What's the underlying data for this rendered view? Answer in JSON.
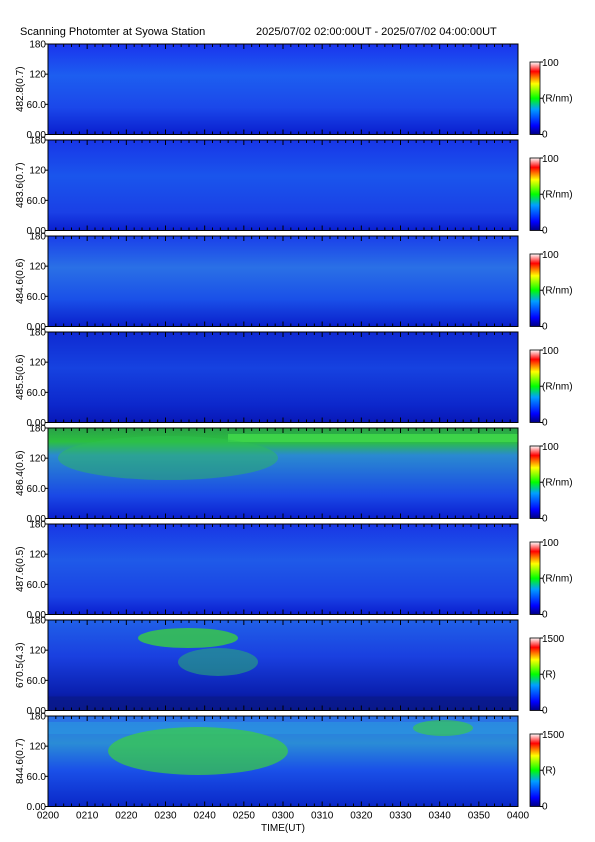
{
  "header": {
    "title": "Scanning Photomter at Syowa Station",
    "time_range": "2025/07/02 02:00:00UT - 2025/07/02 04:00:00UT"
  },
  "chart_data": {
    "type": "heatmap",
    "xlabel": "TIME(UT)",
    "xlim": [
      "0200",
      "0400"
    ],
    "x_ticks": [
      "0200",
      "0210",
      "0220",
      "0230",
      "0240",
      "0250",
      "0300",
      "0310",
      "0320",
      "0330",
      "0340",
      "0350",
      "0400"
    ],
    "y_ticks": [
      "0.00",
      "60.0",
      "120",
      "180"
    ],
    "ylim": [
      0,
      180
    ],
    "colormap": [
      "#000080",
      "#0000ff",
      "#00ff00",
      "#ffff00",
      "#ff0000",
      "#ffffff"
    ],
    "panels": [
      {
        "ylabel": "482.8(0.7)",
        "cbar_max": "100",
        "cbar_min": "0",
        "cbar_unit": "(R/nm)"
      },
      {
        "ylabel": "483.6(0.7)",
        "cbar_max": "100",
        "cbar_min": "0",
        "cbar_unit": "(R/nm)"
      },
      {
        "ylabel": "484.6(0.6)",
        "cbar_max": "100",
        "cbar_min": "0",
        "cbar_unit": "(R/nm)"
      },
      {
        "ylabel": "485.5(0.6)",
        "cbar_max": "100",
        "cbar_min": "0",
        "cbar_unit": "(R/nm)"
      },
      {
        "ylabel": "486.4(0.6)",
        "cbar_max": "100",
        "cbar_min": "0",
        "cbar_unit": "(R/nm)"
      },
      {
        "ylabel": "487.6(0.5)",
        "cbar_max": "100",
        "cbar_min": "0",
        "cbar_unit": "(R/nm)"
      },
      {
        "ylabel": "670.5(4.3)",
        "cbar_max": "1500",
        "cbar_min": "0",
        "cbar_unit": "(R)"
      },
      {
        "ylabel": "844.6(0.7)",
        "cbar_max": "1500",
        "cbar_min": "0",
        "cbar_unit": "(R)"
      }
    ]
  }
}
